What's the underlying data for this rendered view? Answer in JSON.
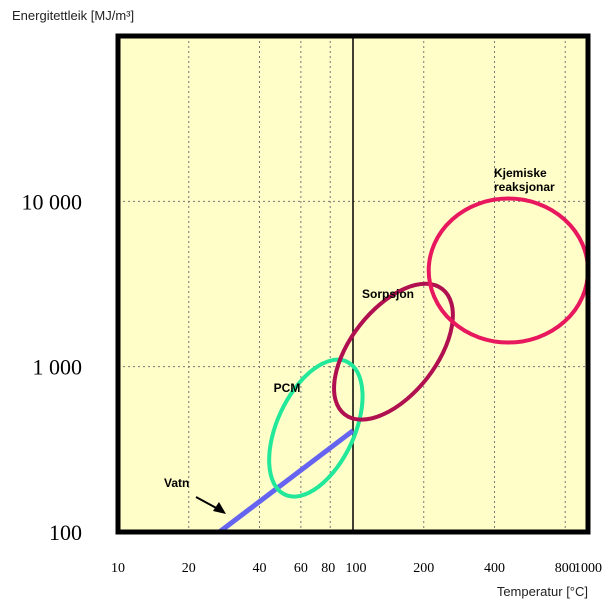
{
  "chart_data": {
    "type": "scatter",
    "ylabel": "Energitettleik [MJ/m³]",
    "xlabel": "Temperatur [°C]",
    "xscale": "log",
    "yscale": "log",
    "xlim": [
      10,
      1000
    ],
    "ylim": [
      100,
      100000
    ],
    "grid": true,
    "x_ticks": [
      10,
      20,
      40,
      60,
      80,
      100,
      200,
      400,
      800,
      1000
    ],
    "x_tick_labels": [
      "10",
      "20",
      "40",
      "60",
      "80",
      "100",
      "200",
      "400",
      "800",
      "1000"
    ],
    "y_ticks": [
      100,
      1000,
      10000
    ],
    "y_tick_labels": [
      "100",
      "1 000",
      "10 000"
    ],
    "reference_line_x": 100,
    "colors": {
      "background": "#fffdc8",
      "vatn": "#6464f0",
      "pcm": "#22e89a",
      "sorpsjon": "#b01050",
      "kjemiske": "#e8185e"
    },
    "regions": [
      {
        "label": "Vatn",
        "shape": "line",
        "x": [
          27,
          100
        ],
        "y": [
          100,
          410
        ]
      },
      {
        "label": "PCM",
        "shape": "ellipse",
        "x_range": [
          42,
          115
        ],
        "y_range": [
          140,
          1290
        ]
      },
      {
        "label": "Sorpsjon",
        "shape": "ellipse",
        "x_range": [
          85,
          260
        ],
        "y_range": [
          370,
          4100
        ]
      },
      {
        "label": "Kjemiske\nreaksjonar",
        "label_lines": [
          "Kjemiske",
          "reaksjonar"
        ],
        "shape": "ellipse",
        "x_range": [
          210,
          1000
        ],
        "y_range": [
          1400,
          10400
        ]
      }
    ]
  }
}
